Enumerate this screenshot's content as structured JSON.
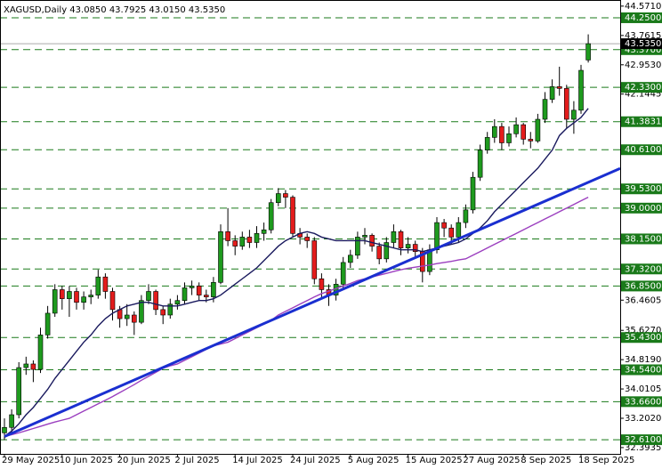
{
  "chart_data": {
    "type": "candlestick",
    "title": "XAGUSD,Daily  43.0850 43.7925 43.0150 43.5350",
    "categories": [
      "29 May 2025",
      null,
      null,
      null,
      null,
      null,
      null,
      null,
      "10 Jun 2025",
      null,
      null,
      null,
      null,
      null,
      null,
      null,
      "20 Jun 2025",
      null,
      null,
      null,
      null,
      null,
      null,
      null,
      "2 Jul 2025",
      null,
      null,
      null,
      null,
      null,
      null,
      null,
      "14 Jul 2025",
      null,
      null,
      null,
      null,
      null,
      null,
      null,
      "24 Jul 2025",
      null,
      null,
      null,
      null,
      null,
      null,
      null,
      "5 Aug 2025",
      null,
      null,
      null,
      null,
      null,
      null,
      null,
      "15 Aug 2025",
      null,
      null,
      null,
      null,
      null,
      null,
      null,
      "27 Aug 2025",
      null,
      null,
      null,
      null,
      null,
      null,
      null,
      "8 Sep 2025",
      null,
      null,
      null,
      null,
      null,
      null,
      null,
      "18 Sep 2025",
      null
    ],
    "open": [
      32.8,
      32.95,
      33.3,
      34.6,
      34.7,
      34.55,
      35.5,
      36.1,
      36.75,
      36.5,
      36.7,
      36.4,
      36.55,
      36.6,
      37.1,
      36.7,
      36.2,
      35.95,
      36.05,
      35.85,
      36.45,
      36.7,
      36.2,
      36.05,
      36.35,
      36.45,
      36.8,
      36.85,
      36.6,
      36.55,
      36.95,
      38.35,
      38.1,
      37.95,
      38.2,
      38.05,
      38.3,
      38.4,
      39.15,
      39.4,
      39.3,
      38.3,
      38.2,
      38.1,
      37.05,
      36.75,
      36.6,
      36.9,
      37.5,
      37.7,
      38.2,
      38.25,
      37.95,
      37.6,
      38.05,
      38.35,
      37.9,
      38.0,
      37.8,
      37.25,
      37.85,
      38.6,
      38.45,
      38.2,
      38.6,
      38.95,
      39.85,
      40.6,
      40.95,
      41.25,
      40.8,
      41.05,
      41.3,
      40.9,
      40.85,
      41.45,
      42.0,
      42.35,
      42.3,
      41.45,
      41.7,
      43.085
    ],
    "high": [
      33.2,
      33.45,
      34.75,
      34.9,
      34.8,
      35.7,
      36.3,
      36.9,
      36.85,
      36.85,
      36.8,
      36.7,
      36.75,
      37.3,
      37.2,
      36.8,
      36.3,
      36.35,
      36.15,
      36.6,
      36.9,
      36.75,
      36.3,
      36.5,
      36.6,
      36.95,
      37.0,
      36.95,
      36.75,
      37.1,
      38.55,
      39.0,
      38.25,
      38.35,
      38.4,
      38.5,
      38.6,
      39.25,
      39.55,
      39.5,
      39.35,
      38.45,
      38.3,
      38.2,
      37.2,
      36.9,
      37.05,
      37.65,
      37.85,
      38.35,
      38.45,
      38.3,
      38.05,
      38.2,
      38.55,
      38.4,
      38.2,
      38.1,
      37.9,
      38.0,
      38.75,
      38.7,
      38.55,
      38.75,
      39.1,
      40.0,
      40.75,
      41.1,
      41.45,
      41.35,
      41.25,
      41.5,
      41.35,
      41.1,
      41.6,
      42.2,
      42.55,
      42.9,
      42.4,
      41.95,
      42.95,
      43.7925
    ],
    "low": [
      32.6,
      32.8,
      33.2,
      34.4,
      34.2,
      34.45,
      35.4,
      36.0,
      36.2,
      36.0,
      36.2,
      36.2,
      36.35,
      36.5,
      36.5,
      35.9,
      35.7,
      35.75,
      35.5,
      35.8,
      36.35,
      36.05,
      35.8,
      35.95,
      36.2,
      36.35,
      36.6,
      36.45,
      36.4,
      36.4,
      36.9,
      37.95,
      37.7,
      37.85,
      37.9,
      37.9,
      38.1,
      38.3,
      39.05,
      39.0,
      38.2,
      38.0,
      37.9,
      36.9,
      36.5,
      36.3,
      36.45,
      36.8,
      37.35,
      37.6,
      38.0,
      37.8,
      37.45,
      37.5,
      37.9,
      37.7,
      37.75,
      37.6,
      36.95,
      37.15,
      37.75,
      38.2,
      38.0,
      38.05,
      38.45,
      38.85,
      39.75,
      40.5,
      40.8,
      40.6,
      40.7,
      40.95,
      40.75,
      40.65,
      40.8,
      41.35,
      41.9,
      42.1,
      41.2,
      41.05,
      41.6,
      43.015
    ],
    "close": [
      32.95,
      33.3,
      34.6,
      34.7,
      34.55,
      35.5,
      36.1,
      36.75,
      36.5,
      36.7,
      36.4,
      36.55,
      36.6,
      37.1,
      36.7,
      36.2,
      35.95,
      36.05,
      35.85,
      36.45,
      36.7,
      36.2,
      36.05,
      36.35,
      36.45,
      36.8,
      36.85,
      36.6,
      36.55,
      36.95,
      38.35,
      38.1,
      37.95,
      38.2,
      38.05,
      38.3,
      38.4,
      39.15,
      39.4,
      39.3,
      38.3,
      38.2,
      38.1,
      37.05,
      36.75,
      36.6,
      36.9,
      37.5,
      37.7,
      38.2,
      38.25,
      37.95,
      37.6,
      38.05,
      38.35,
      37.9,
      38.0,
      37.8,
      37.25,
      37.85,
      38.6,
      38.45,
      38.2,
      38.6,
      38.95,
      39.85,
      40.6,
      40.95,
      41.25,
      40.8,
      41.05,
      41.3,
      40.9,
      40.85,
      41.45,
      42.0,
      42.35,
      42.3,
      41.45,
      41.7,
      42.8,
      43.535
    ],
    "up_color": "#1e9a1e",
    "down_color": "#e31c1c",
    "ylim": [
      32.22,
      44.74
    ],
    "yticks": [
      {
        "value": 44.571,
        "label": "44.5710"
      },
      {
        "value": 43.7615,
        "label": "43.7615"
      },
      {
        "value": 42.953,
        "label": "42.9530"
      },
      {
        "value": 42.1445,
        "label": "42.1445"
      },
      {
        "value": 36.4605,
        "label": "36.4605"
      },
      {
        "value": 35.627,
        "label": "35.6270"
      },
      {
        "value": 34.819,
        "label": "34.8190"
      },
      {
        "value": 34.0105,
        "label": "34.0105"
      },
      {
        "value": 33.202,
        "label": "33.2020"
      },
      {
        "value": 32.3935,
        "label": "32.3935"
      }
    ],
    "moving_averages": [
      {
        "color": "#1a1a5e",
        "values": [
          32.7,
          32.85,
          33.05,
          33.3,
          33.5,
          33.75,
          34.0,
          34.3,
          34.55,
          34.8,
          35.05,
          35.3,
          35.5,
          35.75,
          35.95,
          36.1,
          36.2,
          36.3,
          36.35,
          36.4,
          36.4,
          36.35,
          36.3,
          36.3,
          36.3,
          36.35,
          36.4,
          36.45,
          36.45,
          36.5,
          36.6,
          36.75,
          36.9,
          37.05,
          37.2,
          37.35,
          37.55,
          37.75,
          37.95,
          38.1,
          38.2,
          38.3,
          38.35,
          38.3,
          38.2,
          38.15,
          38.1,
          38.1,
          38.1,
          38.1,
          38.1,
          38.05,
          38.0,
          37.95,
          37.9,
          37.85,
          37.85,
          37.85,
          37.8,
          37.85,
          37.9,
          37.95,
          38.0,
          38.05,
          38.15,
          38.3,
          38.45,
          38.65,
          38.9,
          39.1,
          39.3,
          39.5,
          39.7,
          39.9,
          40.1,
          40.35,
          40.6,
          41.0,
          41.2,
          41.35,
          41.5,
          41.75
        ]
      },
      {
        "color": "#9b3fbf",
        "values": [
          32.7,
          32.75,
          32.8,
          32.86,
          32.92,
          32.98,
          33.04,
          33.1,
          33.15,
          33.2,
          33.3,
          33.4,
          33.5,
          33.6,
          33.7,
          33.8,
          33.91,
          34.02,
          34.13,
          34.25,
          34.36,
          34.47,
          34.58,
          34.65,
          34.7,
          34.8,
          34.9,
          35.0,
          35.1,
          35.2,
          35.25,
          35.3,
          35.4,
          35.5,
          35.6,
          35.7,
          35.8,
          35.9,
          36.05,
          36.15,
          36.25,
          36.35,
          36.45,
          36.55,
          36.64,
          36.71,
          36.78,
          36.85,
          36.92,
          37.0,
          37.05,
          37.1,
          37.15,
          37.2,
          37.25,
          37.3,
          37.34,
          37.37,
          37.4,
          37.43,
          37.47,
          37.5,
          37.53,
          37.57,
          37.6,
          37.7,
          37.8,
          37.9,
          38.0,
          38.1,
          38.2,
          38.3,
          38.4,
          38.5,
          38.6,
          38.7,
          38.8,
          38.9,
          39.0,
          39.1,
          39.2,
          39.3
        ]
      }
    ],
    "trend_line": {
      "color": "#1a2fd0",
      "values": [
        32.7,
        39.71
      ]
    },
    "levels": {
      "color": "#1a7a1a",
      "items": [
        {
          "value": 44.25,
          "label": "44.2500"
        },
        {
          "value": 43.37,
          "label": "43.3700"
        },
        {
          "value": 42.33,
          "label": "42.3300"
        },
        {
          "value": 41.3831,
          "label": "41.3831"
        },
        {
          "value": 40.61,
          "label": "40.6100"
        },
        {
          "value": 39.53,
          "label": "39.5300"
        },
        {
          "value": 39.0,
          "label": "39.0000"
        },
        {
          "value": 38.15,
          "label": "38.1500"
        },
        {
          "value": 37.32,
          "label": "37.3200"
        },
        {
          "value": 36.85,
          "label": "36.8500"
        },
        {
          "value": 35.43,
          "label": "35.4300"
        },
        {
          "value": 34.54,
          "label": "34.5400"
        },
        {
          "value": 33.66,
          "label": "33.6600"
        },
        {
          "value": 32.61,
          "label": "32.6100"
        }
      ]
    },
    "last_price": {
      "value": 43.535,
      "label": "43.5350"
    }
  }
}
